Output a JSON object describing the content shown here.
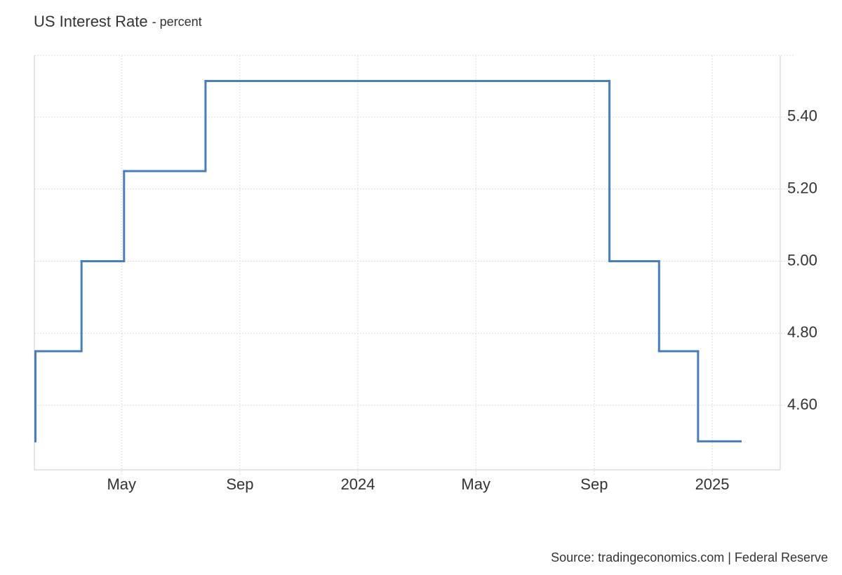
{
  "chart_data": {
    "type": "step",
    "title": "US Interest Rate",
    "subtitle": "- percent",
    "source": "Source: tradingeconomics.com | Federal Reserve",
    "x": [
      2023.09,
      2023.09,
      2023.22,
      2023.34,
      2023.57,
      2024.71,
      2024.85,
      2024.96,
      2025.08
    ],
    "values": [
      4.5,
      4.75,
      5.0,
      5.25,
      5.5,
      5.0,
      4.75,
      4.5,
      4.5
    ],
    "color": "#4a7ebb",
    "xlim": [
      2023.087,
      2025.192
    ],
    "xticks": [
      {
        "value": 2023.333,
        "label": "May"
      },
      {
        "value": 2023.667,
        "label": "Sep"
      },
      2024,
      {
        "value": 2024.333,
        "label": "May"
      },
      {
        "value": 2024.667,
        "label": "Sep"
      },
      2025
    ],
    "ylim": [
      4.421,
      5.571
    ],
    "yticks": [
      {
        "value": 4.6,
        "label": "4.60"
      },
      {
        "value": 4.8,
        "label": "4.80"
      },
      {
        "value": 5.0,
        "label": "5.00"
      },
      {
        "value": 5.2,
        "label": "5.20"
      },
      {
        "value": 5.4,
        "label": "5.40"
      }
    ],
    "grid": true
  }
}
